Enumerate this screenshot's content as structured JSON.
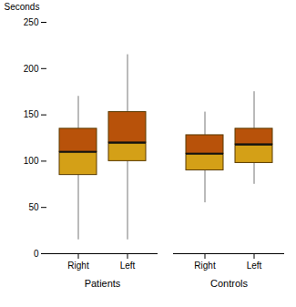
{
  "chart_data": {
    "type": "box",
    "categories": [
      "Right",
      "Left",
      "Right",
      "Left"
    ],
    "groups": [
      "Patients",
      "Patients",
      "Controls",
      "Controls"
    ],
    "whisker_low": [
      15,
      15,
      55,
      75
    ],
    "q1": [
      85,
      100,
      90,
      98
    ],
    "median": [
      110,
      120,
      108,
      118
    ],
    "q3": [
      135,
      153,
      128,
      135
    ],
    "whisker_high": [
      170,
      215,
      153,
      175
    ],
    "colors": [
      "#D4A017",
      "#B8520A"
    ],
    "ylabel": "Seconds",
    "ylim": [
      0,
      250
    ],
    "yticks": [
      0,
      50,
      100,
      150,
      200,
      250
    ]
  }
}
